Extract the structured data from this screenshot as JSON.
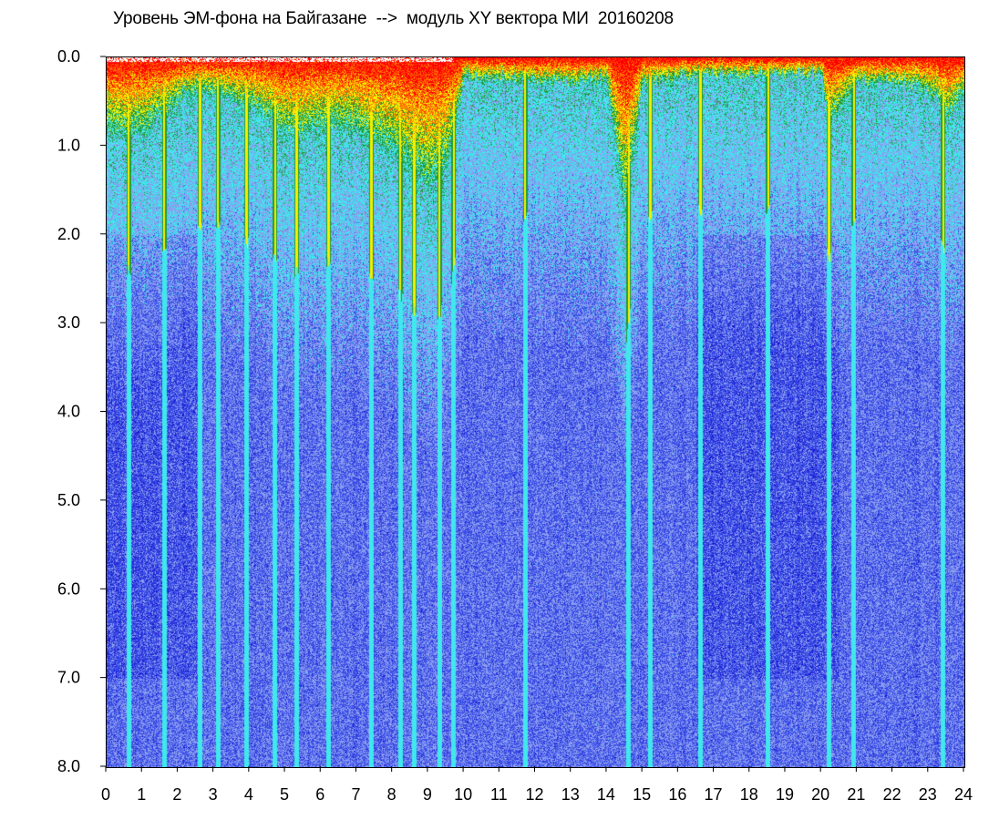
{
  "chart_data": {
    "type": "heatmap",
    "title": "Уровень ЭМ-фона на Байгазане  -->  модуль XY вектора МИ  20160208",
    "xlabel": "",
    "ylabel": "",
    "x_ticks": [
      "0",
      "1",
      "2",
      "3",
      "4",
      "5",
      "6",
      "7",
      "8",
      "9",
      "10",
      "11",
      "12",
      "13",
      "14",
      "15",
      "16",
      "17",
      "18",
      "19",
      "20",
      "21",
      "22",
      "23",
      "24"
    ],
    "y_ticks": [
      "0.0",
      "1.0",
      "2.0",
      "3.0",
      "4.0",
      "5.0",
      "6.0",
      "7.0",
      "8.0"
    ],
    "xlim": [
      0,
      24
    ],
    "ylim": [
      0.0,
      8.0
    ],
    "y_inverted": true,
    "grid": false,
    "legend": "none",
    "colormap": [
      "#1a1ad0",
      "#3b4ee6",
      "#8a9cf0",
      "#3fe8ec",
      "#1f9a3a",
      "#f5f000",
      "#ff6a00",
      "#ff0000"
    ],
    "intensity_profile": {
      "description_x": "hour of day",
      "hours": [
        0,
        0.5,
        1,
        1.5,
        2,
        2.5,
        3,
        3.5,
        4,
        4.5,
        5,
        5.5,
        6,
        6.5,
        7,
        7.5,
        8,
        8.5,
        9,
        9.5,
        10,
        11,
        12,
        13,
        14,
        14.5,
        15,
        16,
        17,
        18,
        19,
        20,
        20.2,
        21,
        22,
        23,
        23.5,
        24
      ],
      "high_level_depth": [
        0.9,
        0.9,
        0.9,
        0.7,
        0.5,
        0.4,
        0.4,
        0.5,
        0.6,
        0.7,
        0.9,
        0.9,
        0.8,
        0.8,
        0.9,
        1.0,
        1.1,
        1.3,
        1.5,
        1.3,
        0.25,
        0.25,
        0.3,
        0.3,
        0.25,
        1.8,
        0.3,
        0.25,
        0.2,
        0.2,
        0.2,
        0.2,
        0.8,
        0.3,
        0.3,
        0.4,
        0.7,
        0.4
      ]
    },
    "bright_vertical_lines_hours": [
      0.6,
      1.6,
      2.6,
      3.1,
      3.9,
      4.7,
      5.3,
      6.2,
      7.4,
      8.2,
      8.6,
      9.3,
      9.7,
      11.7,
      14.6,
      15.2,
      16.6,
      18.5,
      20.2,
      20.9,
      23.4
    ]
  }
}
